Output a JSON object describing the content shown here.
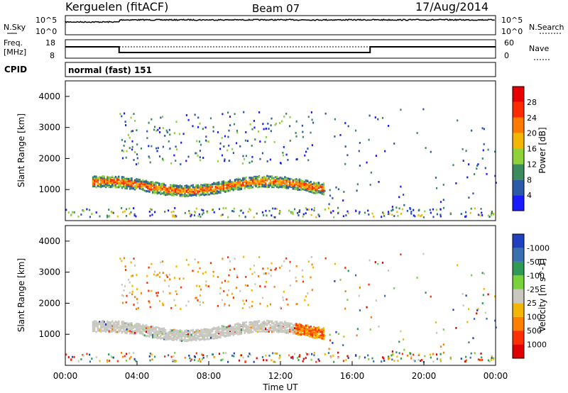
{
  "header": {
    "station": "Kerguelen (fitACF)",
    "beam": "Beam 07",
    "date": "17/Aug/2014"
  },
  "noise_panel": {
    "left_label": "N.Sky",
    "right_label": "N.Search",
    "left_ticks": [
      "10^5",
      "10^0"
    ],
    "right_ticks": [
      "10^5",
      "10^0"
    ]
  },
  "freq_panel": {
    "left_label_1": "Freq.",
    "left_label_2": "[MHz]",
    "right_label": "Nave",
    "left_ticks": [
      "18",
      "8"
    ],
    "right_ticks": [
      "60",
      "0"
    ]
  },
  "cpid": {
    "label": "CPID",
    "value": "normal (fast) 151"
  },
  "x_axis": {
    "label": "Time UT",
    "ticks": [
      "00:00",
      "04:00",
      "08:00",
      "12:00",
      "16:00",
      "20:00",
      "00:00"
    ]
  },
  "chart_data": [
    {
      "type": "heatmap",
      "name": "power",
      "ylabel": "Slant Range [km]",
      "xlim_hours": [
        0,
        24
      ],
      "ylim_km": [
        0,
        4500
      ],
      "yticks": [
        "1000",
        "2000",
        "3000",
        "4000"
      ],
      "colorbar_label": "Power [dB]",
      "colorbar_ticks": [
        "4",
        "8",
        "12",
        "16",
        "20",
        "24",
        "28"
      ],
      "colors": [
        "#1a1aff",
        "#2c5aa8",
        "#3e8a5f",
        "#8fd13a",
        "#f2b705",
        "#ff7a00",
        "#ff2a00",
        "#e60000"
      ]
    },
    {
      "type": "heatmap",
      "name": "velocity",
      "ylabel": "Slant Range [km]",
      "xlim_hours": [
        0,
        24
      ],
      "ylim_km": [
        0,
        4500
      ],
      "yticks": [
        "1000",
        "2000",
        "3000",
        "4000"
      ],
      "colorbar_label": "Velocity [m s^-1]",
      "colorbar_ticks": [
        "1000",
        "500",
        "100",
        "25",
        "-25",
        "-100",
        "-500",
        "-1000"
      ],
      "colors": [
        "#2040c0",
        "#3a6fb0",
        "#2e9a55",
        "#7ad23a",
        "#c8c8c0",
        "#f2b705",
        "#ff8000",
        "#ff3000",
        "#e00000"
      ]
    }
  ]
}
